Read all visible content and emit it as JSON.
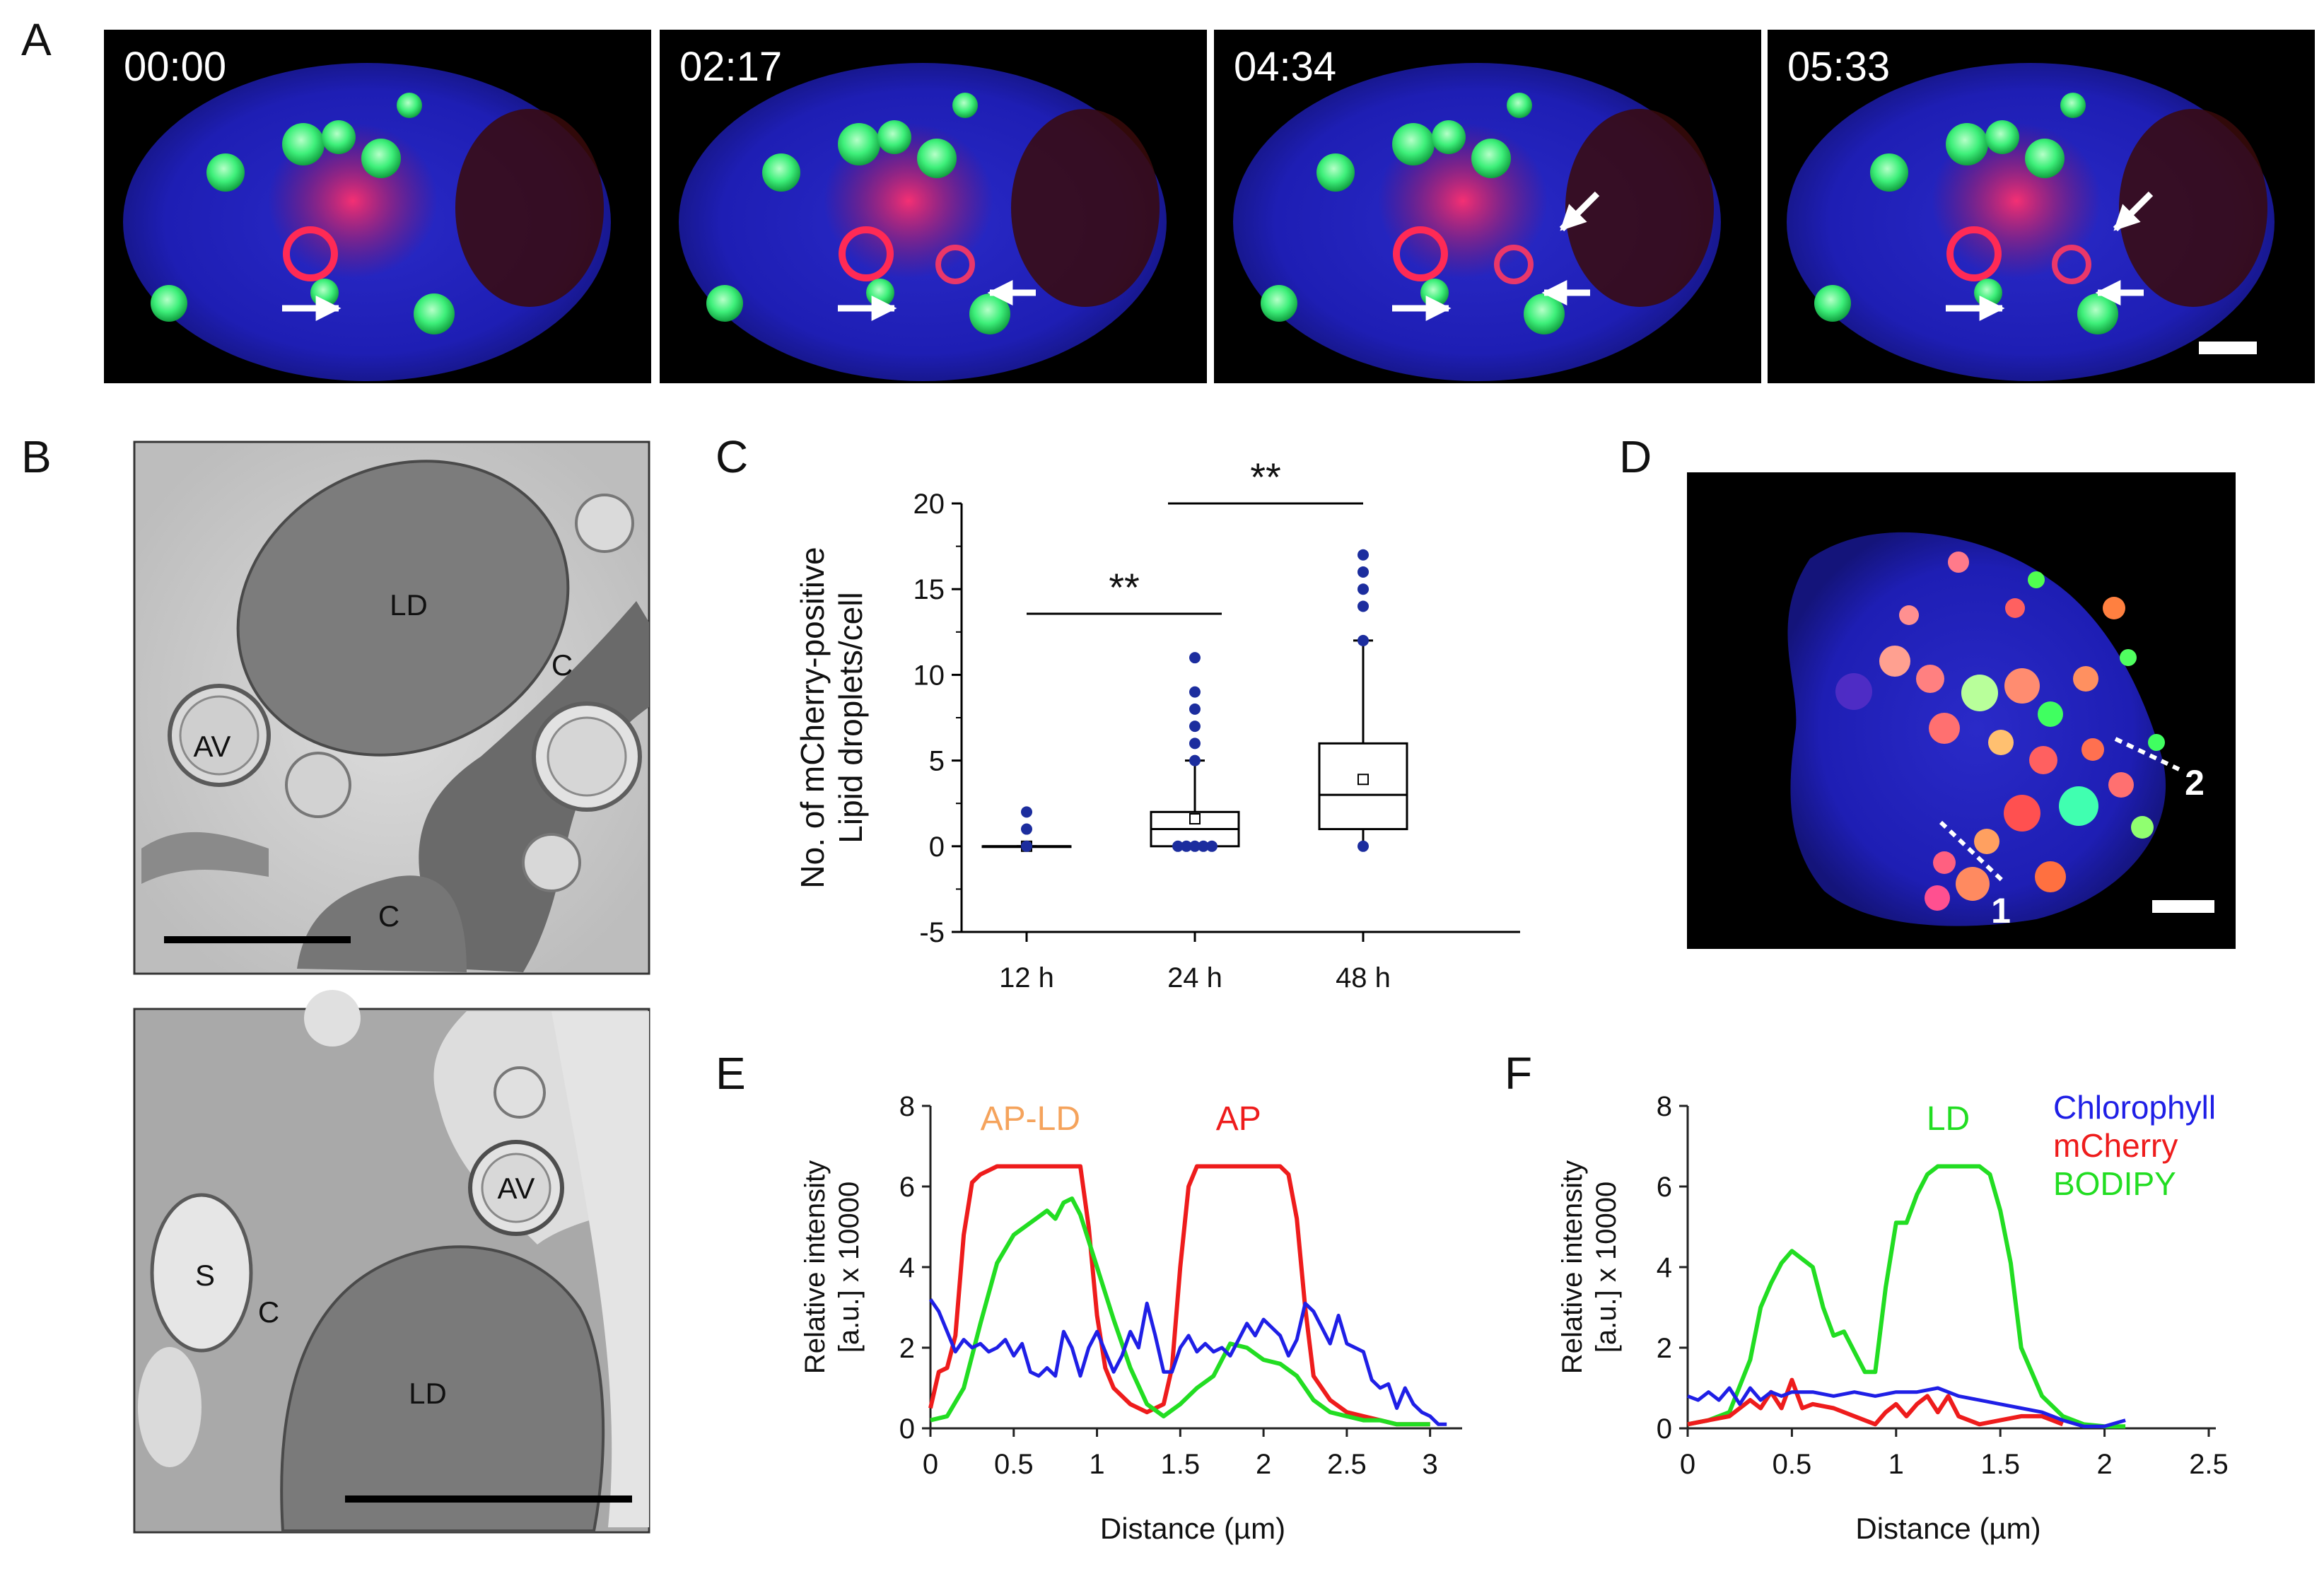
{
  "panels": {
    "A": {
      "letter": "A",
      "frames": [
        {
          "time": "00:00"
        },
        {
          "time": "02:17"
        },
        {
          "time": "04:34"
        },
        {
          "time": "05:33"
        }
      ]
    },
    "B": {
      "letter": "B",
      "top": {
        "labels": [
          "LD",
          "C",
          "AV",
          "C"
        ]
      },
      "bottom": {
        "labels": [
          "AV",
          "S",
          "C",
          "LD"
        ]
      }
    },
    "C": {
      "letter": "C"
    },
    "D": {
      "letter": "D",
      "line_labels": [
        "1",
        "2"
      ]
    },
    "E": {
      "letter": "E"
    },
    "F": {
      "letter": "F"
    }
  },
  "colors": {
    "blue": "#1f1fe6",
    "red": "#ee1c1c",
    "green": "#22dd22",
    "orange": "#f5a35c",
    "dotblue": "#1c2d9e",
    "em_bg": "#d4d4d4",
    "em_dark": "#6a6a6a"
  },
  "chart_data": [
    {
      "panel": "C",
      "type": "box",
      "ylabel_lines": [
        "No. of mCherry-positive",
        "Lipid droplets/cell"
      ],
      "categories": [
        "12 h",
        "24 h",
        "48 h"
      ],
      "ylim": [
        -5,
        20
      ],
      "yticks": [
        -5,
        0,
        5,
        10,
        15,
        20
      ],
      "boxes": [
        {
          "category": "12 h",
          "q1": 0,
          "median": 0,
          "q3": 0,
          "mean": 0,
          "whisker_low": 0,
          "whisker_high": 0,
          "points": [
            2,
            1,
            0
          ]
        },
        {
          "category": "24 h",
          "q1": 0,
          "median": 1,
          "q3": 2,
          "mean": 1.6,
          "whisker_low": 0,
          "whisker_high": 5,
          "points": [
            11,
            9,
            8,
            7,
            6,
            5,
            0,
            0,
            0,
            0,
            0
          ]
        },
        {
          "category": "48 h",
          "q1": 1,
          "median": 3,
          "q3": 6,
          "mean": 3.9,
          "whisker_low": 0,
          "whisker_high": 12,
          "points": [
            17,
            16,
            15,
            14,
            12,
            0
          ]
        }
      ],
      "significance": [
        {
          "from": "12 h",
          "to": "24 h",
          "label": "**"
        },
        {
          "from": "24 h",
          "to": "48 h",
          "label": "**"
        }
      ]
    },
    {
      "panel": "E",
      "type": "line",
      "ylabel_lines": [
        "Relative intensity",
        "[a.u.] x 10000"
      ],
      "xlabel": "Distance (µm)",
      "xlim": [
        0,
        3.15
      ],
      "ylim": [
        0,
        8
      ],
      "xticks": [
        0,
        0.5,
        1,
        1.5,
        2,
        2.5,
        3
      ],
      "yticks": [
        0,
        2,
        4,
        6,
        8
      ],
      "annotations": [
        {
          "text": "AP-LD",
          "x": 0.6,
          "y": 7.4,
          "color": "orange"
        },
        {
          "text": "AP",
          "x": 1.85,
          "y": 7.4,
          "color": "red"
        }
      ],
      "series": [
        {
          "color": "red",
          "x": [
            0,
            0.05,
            0.1,
            0.15,
            0.2,
            0.25,
            0.3,
            0.4,
            0.5,
            0.6,
            0.7,
            0.8,
            0.9,
            0.95,
            1.0,
            1.05,
            1.1,
            1.2,
            1.3,
            1.4,
            1.45,
            1.5,
            1.55,
            1.6,
            1.7,
            1.8,
            1.9,
            2.0,
            2.1,
            2.15,
            2.2,
            2.25,
            2.3,
            2.4,
            2.5,
            2.6,
            2.7,
            2.8,
            2.9,
            3.0
          ],
          "y": [
            0.5,
            1.4,
            1.5,
            2.3,
            4.8,
            6.1,
            6.3,
            6.5,
            6.5,
            6.5,
            6.5,
            6.5,
            6.5,
            5.0,
            2.8,
            1.5,
            1.0,
            0.6,
            0.4,
            0.6,
            1.5,
            4.0,
            6.0,
            6.5,
            6.5,
            6.5,
            6.5,
            6.5,
            6.5,
            6.3,
            5.2,
            3.0,
            1.3,
            0.7,
            0.4,
            0.3,
            0.2,
            0.1,
            0.1,
            0.1
          ]
        },
        {
          "color": "green",
          "x": [
            0,
            0.1,
            0.2,
            0.3,
            0.4,
            0.5,
            0.6,
            0.7,
            0.75,
            0.8,
            0.85,
            0.9,
            1.0,
            1.1,
            1.2,
            1.3,
            1.4,
            1.5,
            1.6,
            1.7,
            1.8,
            1.9,
            2.0,
            2.1,
            2.2,
            2.3,
            2.4,
            2.5,
            2.6,
            2.7,
            2.8,
            2.9,
            3.0
          ],
          "y": [
            0.2,
            0.3,
            1.0,
            2.6,
            4.1,
            4.8,
            5.1,
            5.4,
            5.2,
            5.6,
            5.7,
            5.3,
            4.0,
            2.7,
            1.5,
            0.6,
            0.3,
            0.6,
            1.0,
            1.3,
            2.1,
            2.0,
            1.7,
            1.6,
            1.3,
            0.7,
            0.4,
            0.3,
            0.2,
            0.2,
            0.1,
            0.1,
            0.1
          ]
        },
        {
          "color": "blue",
          "x": [
            0,
            0.05,
            0.1,
            0.15,
            0.2,
            0.25,
            0.3,
            0.35,
            0.4,
            0.45,
            0.5,
            0.55,
            0.6,
            0.65,
            0.7,
            0.75,
            0.8,
            0.85,
            0.9,
            0.95,
            1.0,
            1.05,
            1.1,
            1.15,
            1.2,
            1.25,
            1.3,
            1.35,
            1.4,
            1.45,
            1.5,
            1.55,
            1.6,
            1.65,
            1.7,
            1.75,
            1.8,
            1.85,
            1.9,
            1.95,
            2.0,
            2.05,
            2.1,
            2.15,
            2.2,
            2.25,
            2.3,
            2.35,
            2.4,
            2.45,
            2.5,
            2.55,
            2.6,
            2.65,
            2.7,
            2.75,
            2.8,
            2.85,
            2.9,
            2.95,
            3.0,
            3.05,
            3.1
          ],
          "y": [
            3.2,
            2.9,
            2.4,
            1.9,
            2.2,
            2.0,
            2.1,
            1.9,
            2.0,
            2.2,
            1.8,
            2.1,
            1.4,
            1.3,
            1.5,
            1.3,
            2.4,
            2.0,
            1.3,
            2.0,
            2.4,
            1.9,
            1.4,
            1.8,
            2.4,
            2.0,
            3.1,
            2.3,
            1.4,
            1.4,
            2.0,
            2.3,
            1.9,
            2.1,
            1.9,
            2.0,
            1.8,
            2.2,
            2.6,
            2.3,
            2.7,
            2.5,
            2.3,
            1.8,
            2.2,
            3.1,
            2.9,
            2.5,
            2.1,
            2.8,
            2.1,
            2.0,
            1.9,
            1.2,
            1.0,
            1.1,
            0.5,
            1.0,
            0.6,
            0.4,
            0.3,
            0.1,
            0.1
          ]
        }
      ]
    },
    {
      "panel": "F",
      "type": "line",
      "ylabel_lines": [
        "Relative intensity",
        "[a.u.] x 10000"
      ],
      "xlabel": "Distance (µm)",
      "xlim": [
        0,
        2.5
      ],
      "ylim": [
        0,
        8
      ],
      "xticks": [
        0,
        0.5,
        1,
        1.5,
        2,
        2.5
      ],
      "yticks": [
        0,
        2,
        4,
        6,
        8
      ],
      "annotations": [
        {
          "text": "LD",
          "x": 1.25,
          "y": 7.4,
          "color": "green"
        }
      ],
      "legend": [
        {
          "label": "Chlorophyll",
          "color": "blue"
        },
        {
          "label": "mCherry",
          "color": "red"
        },
        {
          "label": "BODIPY",
          "color": "green"
        }
      ],
      "series": [
        {
          "color": "green",
          "x": [
            0,
            0.1,
            0.2,
            0.3,
            0.35,
            0.4,
            0.45,
            0.5,
            0.55,
            0.6,
            0.65,
            0.7,
            0.75,
            0.8,
            0.85,
            0.9,
            0.95,
            1.0,
            1.05,
            1.1,
            1.15,
            1.2,
            1.3,
            1.4,
            1.45,
            1.5,
            1.55,
            1.6,
            1.7,
            1.8,
            1.9,
            2.0,
            2.1
          ],
          "y": [
            0.1,
            0.2,
            0.4,
            1.7,
            3.0,
            3.6,
            4.1,
            4.4,
            4.2,
            4.0,
            3.0,
            2.3,
            2.4,
            1.9,
            1.4,
            1.4,
            3.5,
            5.1,
            5.1,
            5.8,
            6.3,
            6.5,
            6.5,
            6.5,
            6.3,
            5.4,
            4.1,
            2.0,
            0.8,
            0.3,
            0.1,
            0.05,
            0.05
          ]
        },
        {
          "color": "red",
          "x": [
            0,
            0.1,
            0.2,
            0.3,
            0.35,
            0.4,
            0.45,
            0.5,
            0.55,
            0.6,
            0.7,
            0.8,
            0.9,
            0.95,
            1.0,
            1.05,
            1.1,
            1.15,
            1.2,
            1.25,
            1.3,
            1.4,
            1.5,
            1.6,
            1.7,
            1.8
          ],
          "y": [
            0.1,
            0.2,
            0.3,
            0.7,
            0.5,
            0.9,
            0.5,
            1.2,
            0.5,
            0.6,
            0.5,
            0.3,
            0.1,
            0.4,
            0.6,
            0.3,
            0.6,
            0.8,
            0.4,
            0.8,
            0.3,
            0.1,
            0.2,
            0.3,
            0.3,
            0.1
          ]
        },
        {
          "color": "blue",
          "x": [
            0,
            0.05,
            0.1,
            0.15,
            0.2,
            0.25,
            0.3,
            0.35,
            0.4,
            0.45,
            0.5,
            0.6,
            0.7,
            0.8,
            0.9,
            1.0,
            1.1,
            1.2,
            1.3,
            1.4,
            1.5,
            1.6,
            1.7,
            1.8,
            1.9,
            2.0,
            2.1
          ],
          "y": [
            0.8,
            0.7,
            0.9,
            0.7,
            1.0,
            0.6,
            1.0,
            0.7,
            0.9,
            0.8,
            0.9,
            0.9,
            0.8,
            0.9,
            0.8,
            0.9,
            0.9,
            1.0,
            0.8,
            0.7,
            0.6,
            0.5,
            0.4,
            0.2,
            0.05,
            0.05,
            0.2
          ]
        }
      ]
    }
  ]
}
